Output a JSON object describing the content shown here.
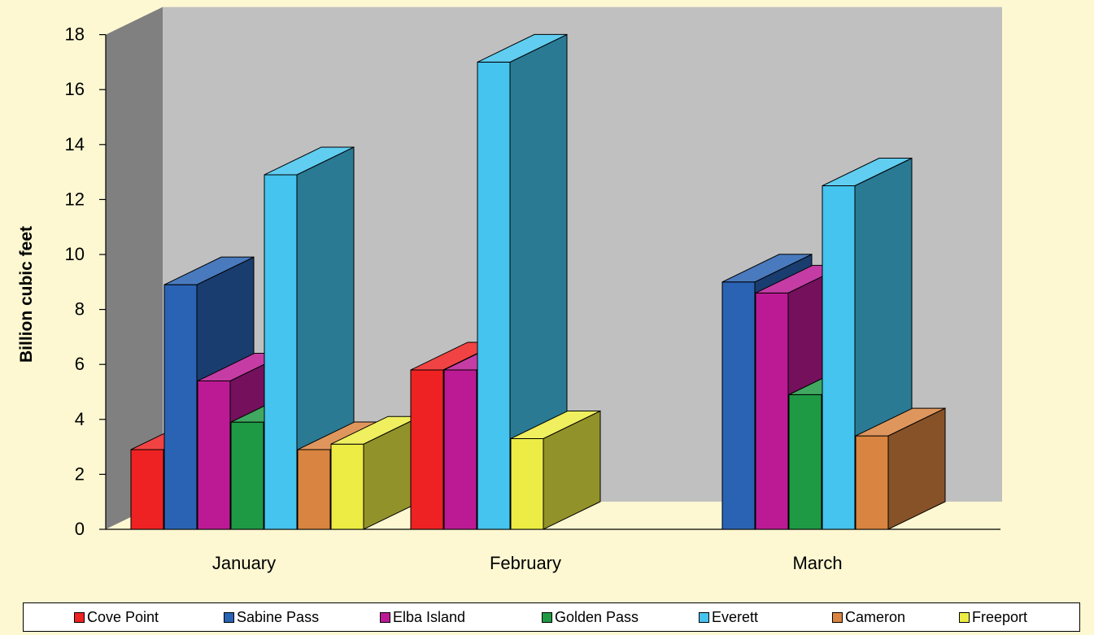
{
  "chart_data": {
    "type": "bar",
    "title": "",
    "xlabel": "",
    "ylabel": "Billion cubic feet",
    "ylim": [
      0,
      18
    ],
    "yticks": [
      0,
      2,
      4,
      6,
      8,
      10,
      12,
      14,
      16,
      18
    ],
    "categories": [
      "January",
      "February",
      "March"
    ],
    "legend_position": "bottom",
    "series": [
      {
        "name": "Cove Point",
        "color": "#ee2222",
        "values": [
          2.9,
          5.8,
          0
        ]
      },
      {
        "name": "Sabine Pass",
        "color": "#2a63b3",
        "values": [
          8.9,
          0,
          9.0
        ]
      },
      {
        "name": "Elba Island",
        "color": "#bb1a94",
        "values": [
          5.4,
          5.8,
          8.6
        ]
      },
      {
        "name": "Golden Pass",
        "color": "#1e9944",
        "values": [
          3.9,
          0,
          4.9
        ]
      },
      {
        "name": "Everett",
        "color": "#44c4ee",
        "values": [
          12.9,
          17.0,
          12.5
        ]
      },
      {
        "name": "Cameron",
        "color": "#d98440",
        "values": [
          2.9,
          0,
          3.4
        ]
      },
      {
        "name": "Freeport",
        "color": "#ecec44",
        "values": [
          3.1,
          3.3,
          0
        ]
      }
    ]
  }
}
